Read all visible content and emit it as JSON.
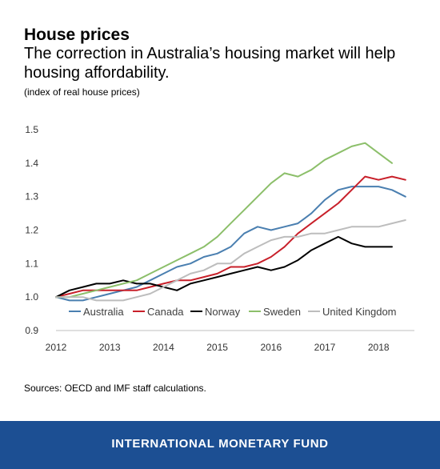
{
  "title": "House prices",
  "subtitle": "The correction in Australia’s housing market will help housing affordability.",
  "units_note": "(index of real house prices)",
  "source": "Sources: OECD and IMF staff calculations.",
  "footer": {
    "brand": "INTERNATIONAL MONETARY FUND",
    "background": "#1c4f93"
  },
  "chart_data": {
    "type": "line",
    "title": "House prices",
    "ylim": [
      0.9,
      1.5
    ],
    "yticks": [
      "0.9",
      "1.0",
      "1.1",
      "1.2",
      "1.3",
      "1.4",
      "1.5"
    ],
    "xlim": [
      2012,
      2018.65
    ],
    "xticks": [
      "2012",
      "2013",
      "2014",
      "2015",
      "2016",
      "2017",
      "2018"
    ],
    "grid": false,
    "legend_position": "inside-bottom",
    "series": [
      {
        "name": "Australia",
        "color": "#4a7fb0",
        "x": [
          2012,
          2012.25,
          2012.5,
          2012.75,
          2013,
          2013.25,
          2013.5,
          2013.75,
          2014,
          2014.25,
          2014.5,
          2014.75,
          2015,
          2015.25,
          2015.5,
          2015.75,
          2016,
          2016.25,
          2016.5,
          2016.75,
          2017,
          2017.25,
          2017.5,
          2017.75,
          2018,
          2018.25,
          2018.5
        ],
        "values": [
          1.0,
          0.99,
          0.99,
          1.0,
          1.01,
          1.02,
          1.03,
          1.05,
          1.07,
          1.09,
          1.1,
          1.12,
          1.13,
          1.15,
          1.19,
          1.21,
          1.2,
          1.21,
          1.22,
          1.25,
          1.29,
          1.32,
          1.33,
          1.33,
          1.33,
          1.32,
          1.3
        ]
      },
      {
        "name": "Canada",
        "color": "#c8202a",
        "x": [
          2012,
          2012.25,
          2012.5,
          2012.75,
          2013,
          2013.25,
          2013.5,
          2013.75,
          2014,
          2014.25,
          2014.5,
          2014.75,
          2015,
          2015.25,
          2015.5,
          2015.75,
          2016,
          2016.25,
          2016.5,
          2016.75,
          2017,
          2017.25,
          2017.5,
          2017.75,
          2018,
          2018.25,
          2018.5
        ],
        "values": [
          1.0,
          1.01,
          1.02,
          1.02,
          1.02,
          1.02,
          1.02,
          1.03,
          1.04,
          1.05,
          1.05,
          1.06,
          1.07,
          1.09,
          1.09,
          1.1,
          1.12,
          1.15,
          1.19,
          1.22,
          1.25,
          1.28,
          1.32,
          1.36,
          1.35,
          1.36,
          1.35
        ]
      },
      {
        "name": "Norway",
        "color": "#000000",
        "x": [
          2012,
          2012.25,
          2012.5,
          2012.75,
          2013,
          2013.25,
          2013.5,
          2013.75,
          2014,
          2014.25,
          2014.5,
          2014.75,
          2015,
          2015.25,
          2015.5,
          2015.75,
          2016,
          2016.25,
          2016.5,
          2016.75,
          2017,
          2017.25,
          2017.5,
          2017.75,
          2018,
          2018.25
        ],
        "values": [
          1.0,
          1.02,
          1.03,
          1.04,
          1.04,
          1.05,
          1.04,
          1.04,
          1.03,
          1.02,
          1.04,
          1.05,
          1.06,
          1.07,
          1.08,
          1.09,
          1.08,
          1.09,
          1.11,
          1.14,
          1.16,
          1.18,
          1.16,
          1.15,
          1.15,
          1.15
        ]
      },
      {
        "name": "Sweden",
        "color": "#8cbf6a",
        "x": [
          2012,
          2012.25,
          2012.5,
          2012.75,
          2013,
          2013.25,
          2013.5,
          2013.75,
          2014,
          2014.25,
          2014.5,
          2014.75,
          2015,
          2015.25,
          2015.5,
          2015.75,
          2016,
          2016.25,
          2016.5,
          2016.75,
          2017,
          2017.25,
          2017.5,
          2017.75,
          2018,
          2018.25
        ],
        "values": [
          1.0,
          1.0,
          1.01,
          1.02,
          1.03,
          1.04,
          1.05,
          1.07,
          1.09,
          1.11,
          1.13,
          1.15,
          1.18,
          1.22,
          1.26,
          1.3,
          1.34,
          1.37,
          1.36,
          1.38,
          1.41,
          1.43,
          1.45,
          1.46,
          1.43,
          1.4
        ]
      },
      {
        "name": "United Kingdom",
        "color": "#bdbdbd",
        "x": [
          2012,
          2012.25,
          2012.5,
          2012.75,
          2013,
          2013.25,
          2013.5,
          2013.75,
          2014,
          2014.25,
          2014.5,
          2014.75,
          2015,
          2015.25,
          2015.5,
          2015.75,
          2016,
          2016.25,
          2016.5,
          2016.75,
          2017,
          2017.25,
          2017.5,
          2017.75,
          2018,
          2018.25,
          2018.5
        ],
        "values": [
          1.0,
          1.0,
          1.0,
          0.99,
          0.99,
          0.99,
          1.0,
          1.01,
          1.03,
          1.05,
          1.07,
          1.08,
          1.1,
          1.1,
          1.13,
          1.15,
          1.17,
          1.18,
          1.18,
          1.19,
          1.19,
          1.2,
          1.21,
          1.21,
          1.21,
          1.22,
          1.23
        ]
      }
    ]
  }
}
